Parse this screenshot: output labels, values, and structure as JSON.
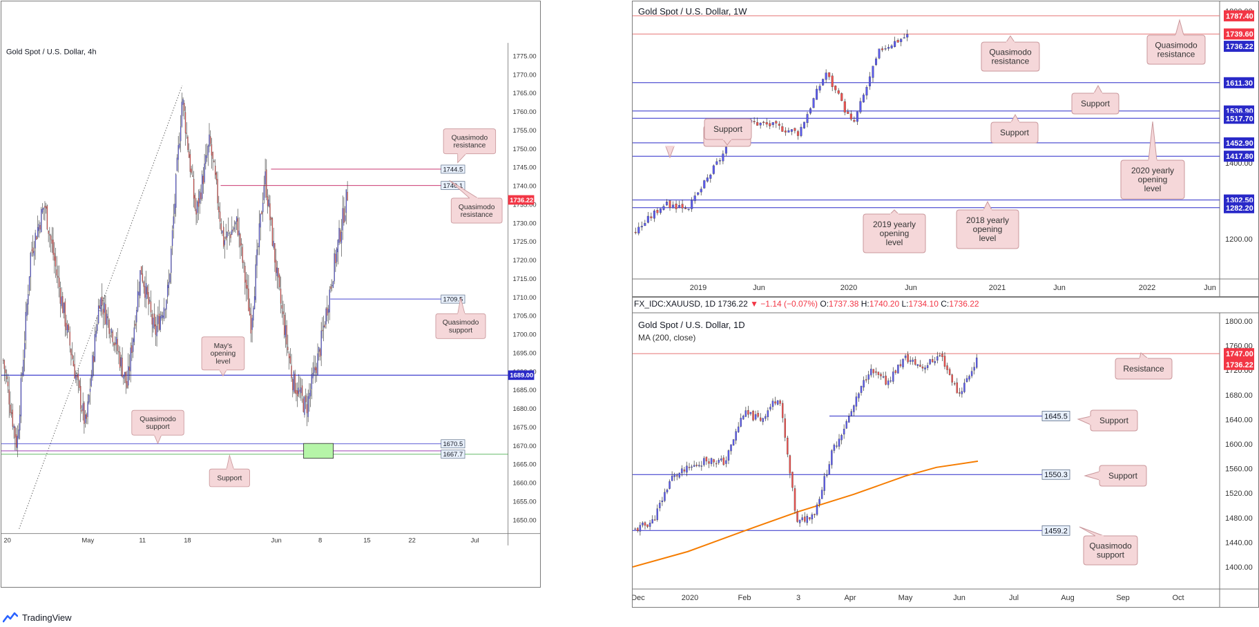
{
  "footer": {
    "brand": "TradingView"
  },
  "panels": {
    "h4": {
      "title": "Gold Spot / U.S. Dollar, 4h",
      "chart_data": {
        "type": "candlestick",
        "timeframe": "4h",
        "ylim": [
          1643,
          1779
        ],
        "y_ticks": [
          "1775.00",
          "1770.00",
          "1765.00",
          "1760.00",
          "1755.00",
          "1750.00",
          "1745.00",
          "1740.00",
          "1735.00",
          "1730.00",
          "1725.00",
          "1720.00",
          "1715.00",
          "1710.00",
          "1705.00",
          "1700.00",
          "1695.00",
          "1690.00",
          "1685.00",
          "1680.00",
          "1675.00",
          "1670.00",
          "1665.00",
          "1660.00",
          "1655.00",
          "1650.00"
        ],
        "x_ticks": [
          "20",
          "May",
          "11",
          "18",
          "Jun",
          "8",
          "15",
          "22",
          "Jul"
        ],
        "price_path": [
          [
            "20",
            1693
          ],
          [
            "22",
            1670
          ],
          [
            "23",
            1722
          ],
          [
            "24",
            1735
          ],
          [
            "27",
            1714
          ],
          [
            "29",
            1694
          ],
          [
            "May",
            1675
          ],
          [
            "4",
            1710
          ],
          [
            "6",
            1700
          ],
          [
            "8",
            1686
          ],
          [
            "11",
            1718
          ],
          [
            "13",
            1700
          ],
          [
            "15",
            1712
          ],
          [
            "18",
            1764
          ],
          [
            "19",
            1732
          ],
          [
            "21",
            1752
          ],
          [
            "23",
            1725
          ],
          [
            "27",
            1730
          ],
          [
            "29",
            1703
          ],
          [
            "Jun",
            1743
          ],
          [
            "3",
            1712
          ],
          [
            "5",
            1688
          ],
          [
            "8",
            1680
          ],
          [
            "9",
            1696
          ],
          [
            "10",
            1718
          ],
          [
            "11",
            1738
          ]
        ],
        "current_price": "1736.22",
        "levels": [
          {
            "value": 1744.5,
            "label": "1744.5",
            "color": "#c2185b"
          },
          {
            "value": 1740.1,
            "label": "1740.1",
            "color": "#c2185b"
          },
          {
            "value": 1709.5,
            "label": "1709.5",
            "color": "#2929c8"
          },
          {
            "value": 1689.0,
            "label": "1689.00",
            "color": "#2929c8"
          },
          {
            "value": 1670.5,
            "label": "1670.5",
            "color": "#2929c8"
          },
          {
            "value": 1667.7,
            "label": "1667.7",
            "color": "#4caf50"
          }
        ],
        "annotations": [
          {
            "text": "Quasimodo resistance"
          },
          {
            "text": "Quasimodo resistance"
          },
          {
            "text": "Quasimodo support"
          },
          {
            "text": "May's opening level"
          },
          {
            "text": "Quasimodo support"
          },
          {
            "text": "Support"
          }
        ]
      }
    },
    "w1": {
      "title": "Gold Spot / U.S. Dollar, 1W",
      "chart_data": {
        "type": "candlestick",
        "timeframe": "1W",
        "y_ticks": [
          "1200.00",
          "1400.00",
          "1800.00"
        ],
        "x_ticks": [
          "2019",
          "Jun",
          "2020",
          "Jun",
          "2021",
          "Jun",
          "2022",
          "Jun"
        ],
        "price_path": [
          [
            "2018 Nov",
            1220
          ],
          [
            "2019 Jan",
            1290
          ],
          [
            "2019 Apr",
            1285
          ],
          [
            "2019 Jun",
            1400
          ],
          [
            "2019 Aug",
            1510
          ],
          [
            "2019 Oct",
            1500
          ],
          [
            "2019 Dec",
            1480
          ],
          [
            "2020 Feb",
            1640
          ],
          [
            "2020 Mar",
            1500
          ],
          [
            "2020 Apr",
            1700
          ],
          [
            "2020 Jun",
            1736
          ]
        ],
        "price_labels": [
          {
            "label": "1787.40",
            "color": "#f23645"
          },
          {
            "label": "1739.60",
            "color": "#f23645"
          },
          {
            "label": "1736.22",
            "color": "#2929c8"
          },
          {
            "label": "1611.30",
            "color": "#2929c8"
          },
          {
            "label": "1536.90",
            "color": "#2929c8"
          },
          {
            "label": "1517.70",
            "color": "#2929c8"
          },
          {
            "label": "1452.90",
            "color": "#2929c8"
          },
          {
            "label": "1417.80",
            "color": "#2929c8"
          },
          {
            "label": "1302.50",
            "color": "#2929c8"
          },
          {
            "label": "1282.20",
            "color": "#2929c8"
          }
        ],
        "annotations": [
          {
            "text": "Quasimodo resistance"
          },
          {
            "text": "Quasimodo resistance"
          },
          {
            "text": "Support"
          },
          {
            "text": "Support"
          },
          {
            "text": "Support"
          },
          {
            "text": "Support"
          },
          {
            "text": "2020 yearly opening level"
          },
          {
            "text": "2019 yearly opening level"
          },
          {
            "text": "2018 yearly opening level"
          }
        ]
      }
    },
    "d1": {
      "info": {
        "symbol": "FX_IDC:XAUUSD, 1D",
        "last": "1736.22",
        "change": "−1.14 (−0.07%)",
        "o_label": "O:",
        "o": "1737.38",
        "h_label": "H:",
        "h": "1740.20",
        "l_label": "L:",
        "l": "1734.10",
        "c_label": "C:",
        "c": "1736.22"
      },
      "title": "Gold Spot / U.S. Dollar, 1D",
      "indicator": "MA (200, close)",
      "chart_data": {
        "type": "candlestick",
        "timeframe": "1D",
        "ylim": [
          1370,
          1810
        ],
        "y_ticks": [
          "1800.00",
          "1760.00",
          "1720.00",
          "1680.00",
          "1640.00",
          "1600.00",
          "1560.00",
          "1520.00",
          "1480.00",
          "1440.00",
          "1400.00"
        ],
        "x_ticks": [
          "Dec",
          "2020",
          "Feb",
          "3",
          "Apr",
          "May",
          "Jun",
          "Jul",
          "Aug",
          "Sep",
          "Oct"
        ],
        "price_path": [
          [
            "Dec",
            1460
          ],
          [
            "Dec 15",
            1475
          ],
          [
            "2020",
            1545
          ],
          [
            "Jan 15",
            1560
          ],
          [
            "Feb",
            1575
          ],
          [
            "Feb 10",
            1570
          ],
          [
            "Feb 24",
            1650
          ],
          [
            "3",
            1640
          ],
          [
            "Mar 9",
            1680
          ],
          [
            "Mar 16",
            1470
          ],
          [
            "Mar 20",
            1490
          ],
          [
            "Apr",
            1590
          ],
          [
            "Apr 8",
            1650
          ],
          [
            "Apr 15",
            1720
          ],
          [
            "May",
            1700
          ],
          [
            "May 15",
            1740
          ],
          [
            "May 20",
            1725
          ],
          [
            "Jun",
            1745
          ],
          [
            "Jun 5",
            1680
          ],
          [
            "Jun 10",
            1736
          ]
        ],
        "ma_200": [
          [
            "Dec",
            1400
          ],
          [
            "2020",
            1425
          ],
          [
            "Feb",
            1458
          ],
          [
            "3",
            1490
          ],
          [
            "Apr",
            1518
          ],
          [
            "May",
            1548
          ],
          [
            "Jun",
            1562
          ],
          [
            "Jun 12",
            1572
          ]
        ],
        "price_labels": [
          {
            "label": "1747.00",
            "color": "#f23645"
          },
          {
            "label": "1736.22",
            "color": "#f23645"
          }
        ],
        "levels": [
          {
            "value": 1747.0,
            "color": "#f23645"
          },
          {
            "value": 1645.5,
            "label": "1645.5",
            "color": "#2929c8"
          },
          {
            "value": 1550.3,
            "label": "1550.3",
            "color": "#2929c8"
          },
          {
            "value": 1459.2,
            "label": "1459.2",
            "color": "#2929c8"
          }
        ],
        "annotations": [
          {
            "text": "Resistance"
          },
          {
            "text": "Support"
          },
          {
            "text": "Support"
          },
          {
            "text": "Quasimodo support"
          }
        ]
      }
    }
  },
  "colors": {
    "up": "#5b5bf0",
    "down": "#ef5350",
    "resistance": "#f23645",
    "support": "#2929c8",
    "ma": "#f57c00",
    "callout_bg": "#f5d7d9",
    "callout_border": "#c9979b"
  }
}
